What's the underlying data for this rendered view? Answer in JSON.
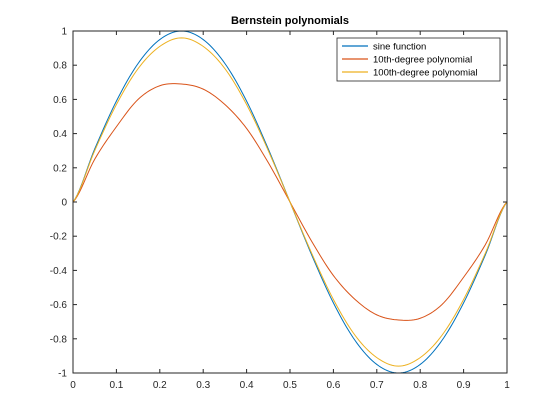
{
  "chart_data": {
    "type": "line",
    "title": "Bernstein polynomials",
    "xlabel": "",
    "ylabel": "",
    "xlim": [
      0,
      1
    ],
    "ylim": [
      -1,
      1
    ],
    "x_ticks": [
      0,
      0.1,
      0.2,
      0.3,
      0.4,
      0.5,
      0.6,
      0.7,
      0.8,
      0.9,
      1
    ],
    "x_tick_labels": [
      "0",
      "0.1",
      "0.2",
      "0.3",
      "0.4",
      "0.5",
      "0.6",
      "0.7",
      "0.8",
      "0.9",
      "1"
    ],
    "y_ticks": [
      1,
      0.8,
      0.6,
      0.4,
      0.2,
      0,
      -0.2,
      -0.4,
      -0.6,
      -0.8,
      -1
    ],
    "y_tick_labels": [
      "1",
      "0.8",
      "0.6",
      "0.4",
      "0.2",
      "0",
      "-0.2",
      "-0.4",
      "-0.6",
      "-0.8",
      "-1"
    ],
    "grid": false,
    "legend_position": "top-right",
    "x": [
      0,
      0.05,
      0.1,
      0.15,
      0.2,
      0.25,
      0.3,
      0.35,
      0.4,
      0.45,
      0.5,
      0.55,
      0.6,
      0.65,
      0.7,
      0.75,
      0.8,
      0.85,
      0.9,
      0.95,
      1
    ],
    "series": [
      {
        "name": "sine function",
        "color": "#0072BD",
        "values": [
          0,
          0.31,
          0.59,
          0.81,
          0.95,
          1.0,
          0.95,
          0.81,
          0.59,
          0.31,
          0,
          -0.31,
          -0.59,
          -0.81,
          -0.95,
          -1.0,
          -0.95,
          -0.81,
          -0.59,
          -0.31,
          0
        ]
      },
      {
        "name": "10th-degree polynomial",
        "color": "#D95319",
        "values": [
          0,
          0.25,
          0.44,
          0.6,
          0.68,
          0.69,
          0.66,
          0.57,
          0.43,
          0.23,
          0,
          -0.23,
          -0.43,
          -0.57,
          -0.66,
          -0.69,
          -0.68,
          -0.6,
          -0.44,
          -0.25,
          0
        ]
      },
      {
        "name": "100th-degree polynomial",
        "color": "#EDB120",
        "values": [
          0,
          0.3,
          0.57,
          0.78,
          0.91,
          0.96,
          0.91,
          0.78,
          0.57,
          0.3,
          0,
          -0.3,
          -0.57,
          -0.78,
          -0.91,
          -0.96,
          -0.91,
          -0.78,
          -0.57,
          -0.3,
          0
        ]
      }
    ]
  }
}
